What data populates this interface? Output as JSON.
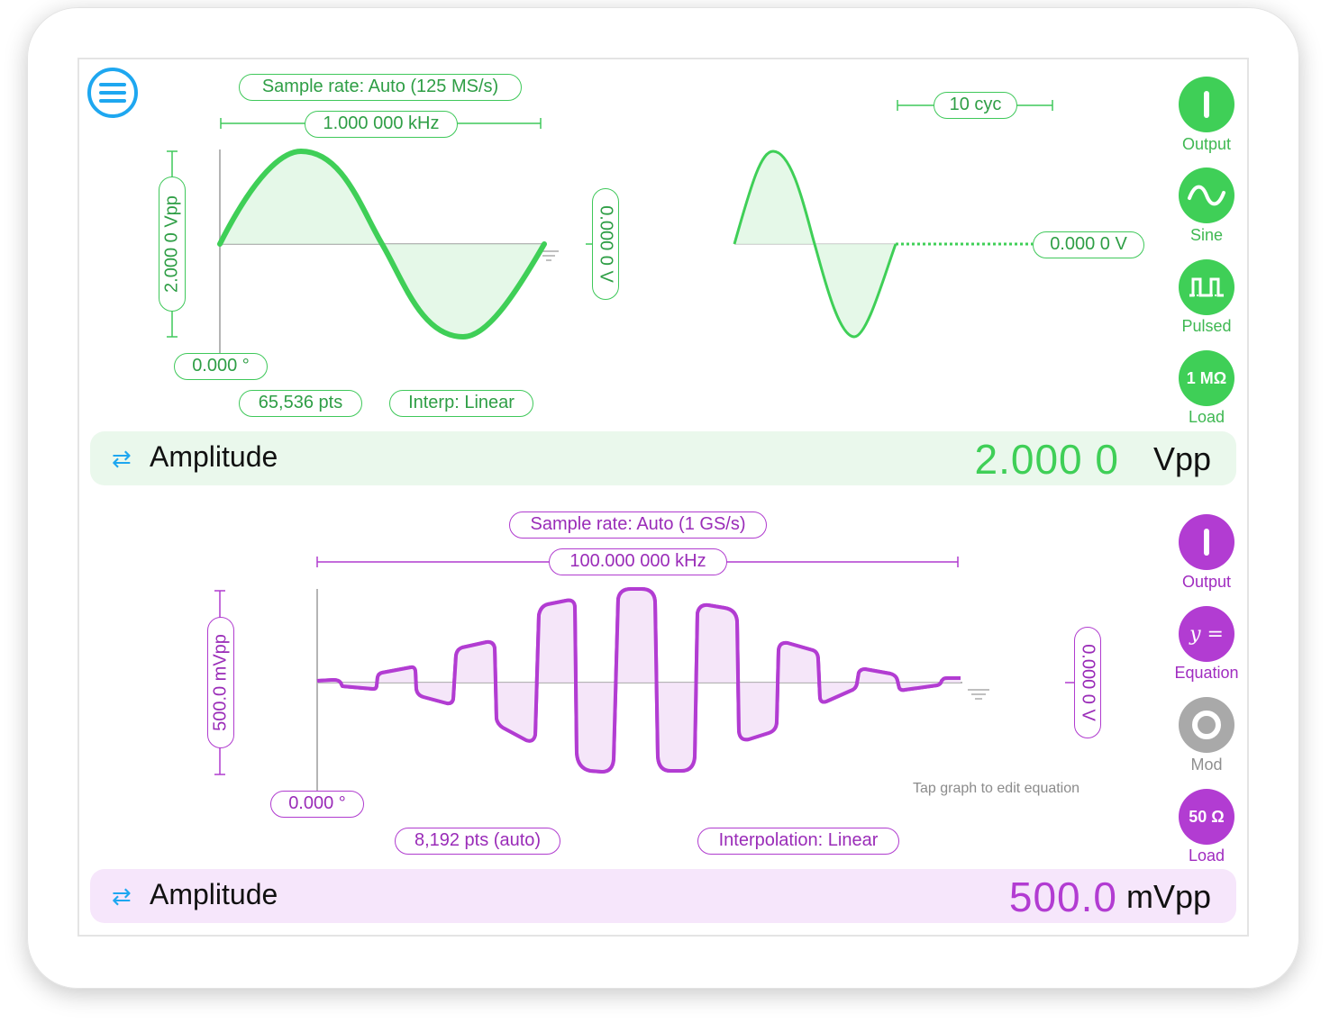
{
  "colors": {
    "green": "#3fcf57",
    "purple": "#b23cd2",
    "gray": "#a9a9a9",
    "accent_blue": "#1ea7f0"
  },
  "menu": {
    "icon": "hamburger-menu-icon"
  },
  "channel1": {
    "sample_rate": "Sample rate: Auto (125 MS/s)",
    "frequency": "1.000 000 kHz",
    "amplitude_tag": "2.000 0 Vpp",
    "offset_tag": "0.000 0 V",
    "phase": "0.000 °",
    "points": "65,536 pts",
    "interp": "Interp: Linear",
    "cycles": "10 cyc",
    "burst_level": "0.000 0 V",
    "controls": [
      {
        "label": "Output",
        "icon": "power-icon"
      },
      {
        "label": "Sine",
        "icon": "sine-wave-icon"
      },
      {
        "label": "Pulsed",
        "icon": "pulse-icon"
      },
      {
        "label": "Load",
        "icon": "1 MΩ"
      }
    ],
    "param_bar": {
      "swap_icon": "⇄",
      "label": "Amplitude",
      "value": "2.000 0",
      "unit": "Vpp"
    }
  },
  "channel2": {
    "sample_rate": "Sample rate: Auto (1 GS/s)",
    "frequency": "100.000 000 kHz",
    "amplitude_tag": "500.0 mVpp",
    "offset_tag": "0.000 0 V",
    "phase": "0.000 °",
    "points": "8,192 pts (auto)",
    "interp": "Interpolation: Linear",
    "hint": "Tap graph to edit equation",
    "controls": [
      {
        "label": "Output",
        "icon": "power-icon"
      },
      {
        "label": "Equation",
        "icon": "y ="
      },
      {
        "label": "Mod",
        "icon": "mod-ring-icon"
      },
      {
        "label": "Load",
        "icon": "50 Ω"
      }
    ],
    "param_bar": {
      "swap_icon": "⇄",
      "label": "Amplitude",
      "value": "500.0",
      "unit": "mVpp"
    }
  }
}
